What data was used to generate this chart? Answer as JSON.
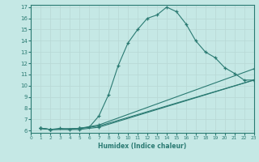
{
  "xlabel": "Humidex (Indice chaleur)",
  "bg_color": "#c5e8e5",
  "line_color": "#2a7a72",
  "grid_color": "#b8d8d5",
  "xlim": [
    0,
    23
  ],
  "ylim": [
    6,
    17
  ],
  "xticks": [
    0,
    1,
    2,
    3,
    4,
    5,
    6,
    7,
    8,
    9,
    10,
    11,
    12,
    13,
    14,
    15,
    16,
    17,
    18,
    19,
    20,
    21,
    22,
    23
  ],
  "yticks": [
    6,
    7,
    8,
    9,
    10,
    11,
    12,
    13,
    14,
    15,
    16,
    17
  ],
  "lines": [
    {
      "x": [
        1,
        2,
        3,
        4,
        5,
        6,
        7,
        8,
        9,
        10,
        11,
        12,
        13,
        14,
        15,
        16,
        17,
        18,
        19,
        20,
        21,
        22,
        23
      ],
      "y": [
        6.2,
        6.1,
        6.2,
        6.1,
        6.2,
        6.3,
        7.3,
        9.2,
        11.8,
        13.8,
        15.0,
        16.0,
        16.3,
        17.0,
        16.6,
        15.5,
        14.0,
        13.0,
        12.5,
        11.6,
        11.1,
        10.5,
        10.5
      ]
    },
    {
      "x": [
        1,
        2,
        5,
        7,
        23
      ],
      "y": [
        6.2,
        6.1,
        6.2,
        6.5,
        11.5
      ]
    },
    {
      "x": [
        1,
        2,
        5,
        7,
        23
      ],
      "y": [
        6.2,
        6.1,
        6.2,
        6.4,
        10.5
      ]
    },
    {
      "x": [
        1,
        2,
        5,
        7,
        23
      ],
      "y": [
        6.2,
        6.1,
        6.1,
        6.3,
        10.5
      ]
    }
  ],
  "line_markers": [
    {
      "x": [
        1,
        2,
        3,
        4,
        5,
        6,
        7,
        8,
        9,
        10,
        11,
        12,
        13,
        14,
        15,
        16,
        17,
        18,
        19,
        20,
        21,
        22,
        23
      ],
      "y": [
        6.2,
        6.1,
        6.2,
        6.1,
        6.2,
        6.3,
        7.3,
        9.2,
        11.8,
        13.8,
        15.0,
        16.0,
        16.3,
        17.0,
        16.6,
        15.5,
        14.0,
        13.0,
        12.5,
        11.6,
        11.1,
        10.5,
        10.5
      ]
    },
    {
      "x": [
        1,
        2,
        5,
        7,
        23
      ],
      "y": [
        6.2,
        6.1,
        6.2,
        6.5,
        11.5
      ]
    },
    {
      "x": [
        1,
        2,
        5,
        7,
        23
      ],
      "y": [
        6.2,
        6.1,
        6.2,
        6.4,
        10.5
      ]
    },
    {
      "x": [
        1,
        2,
        5,
        7,
        23
      ],
      "y": [
        6.2,
        6.1,
        6.1,
        6.3,
        10.5
      ]
    }
  ]
}
